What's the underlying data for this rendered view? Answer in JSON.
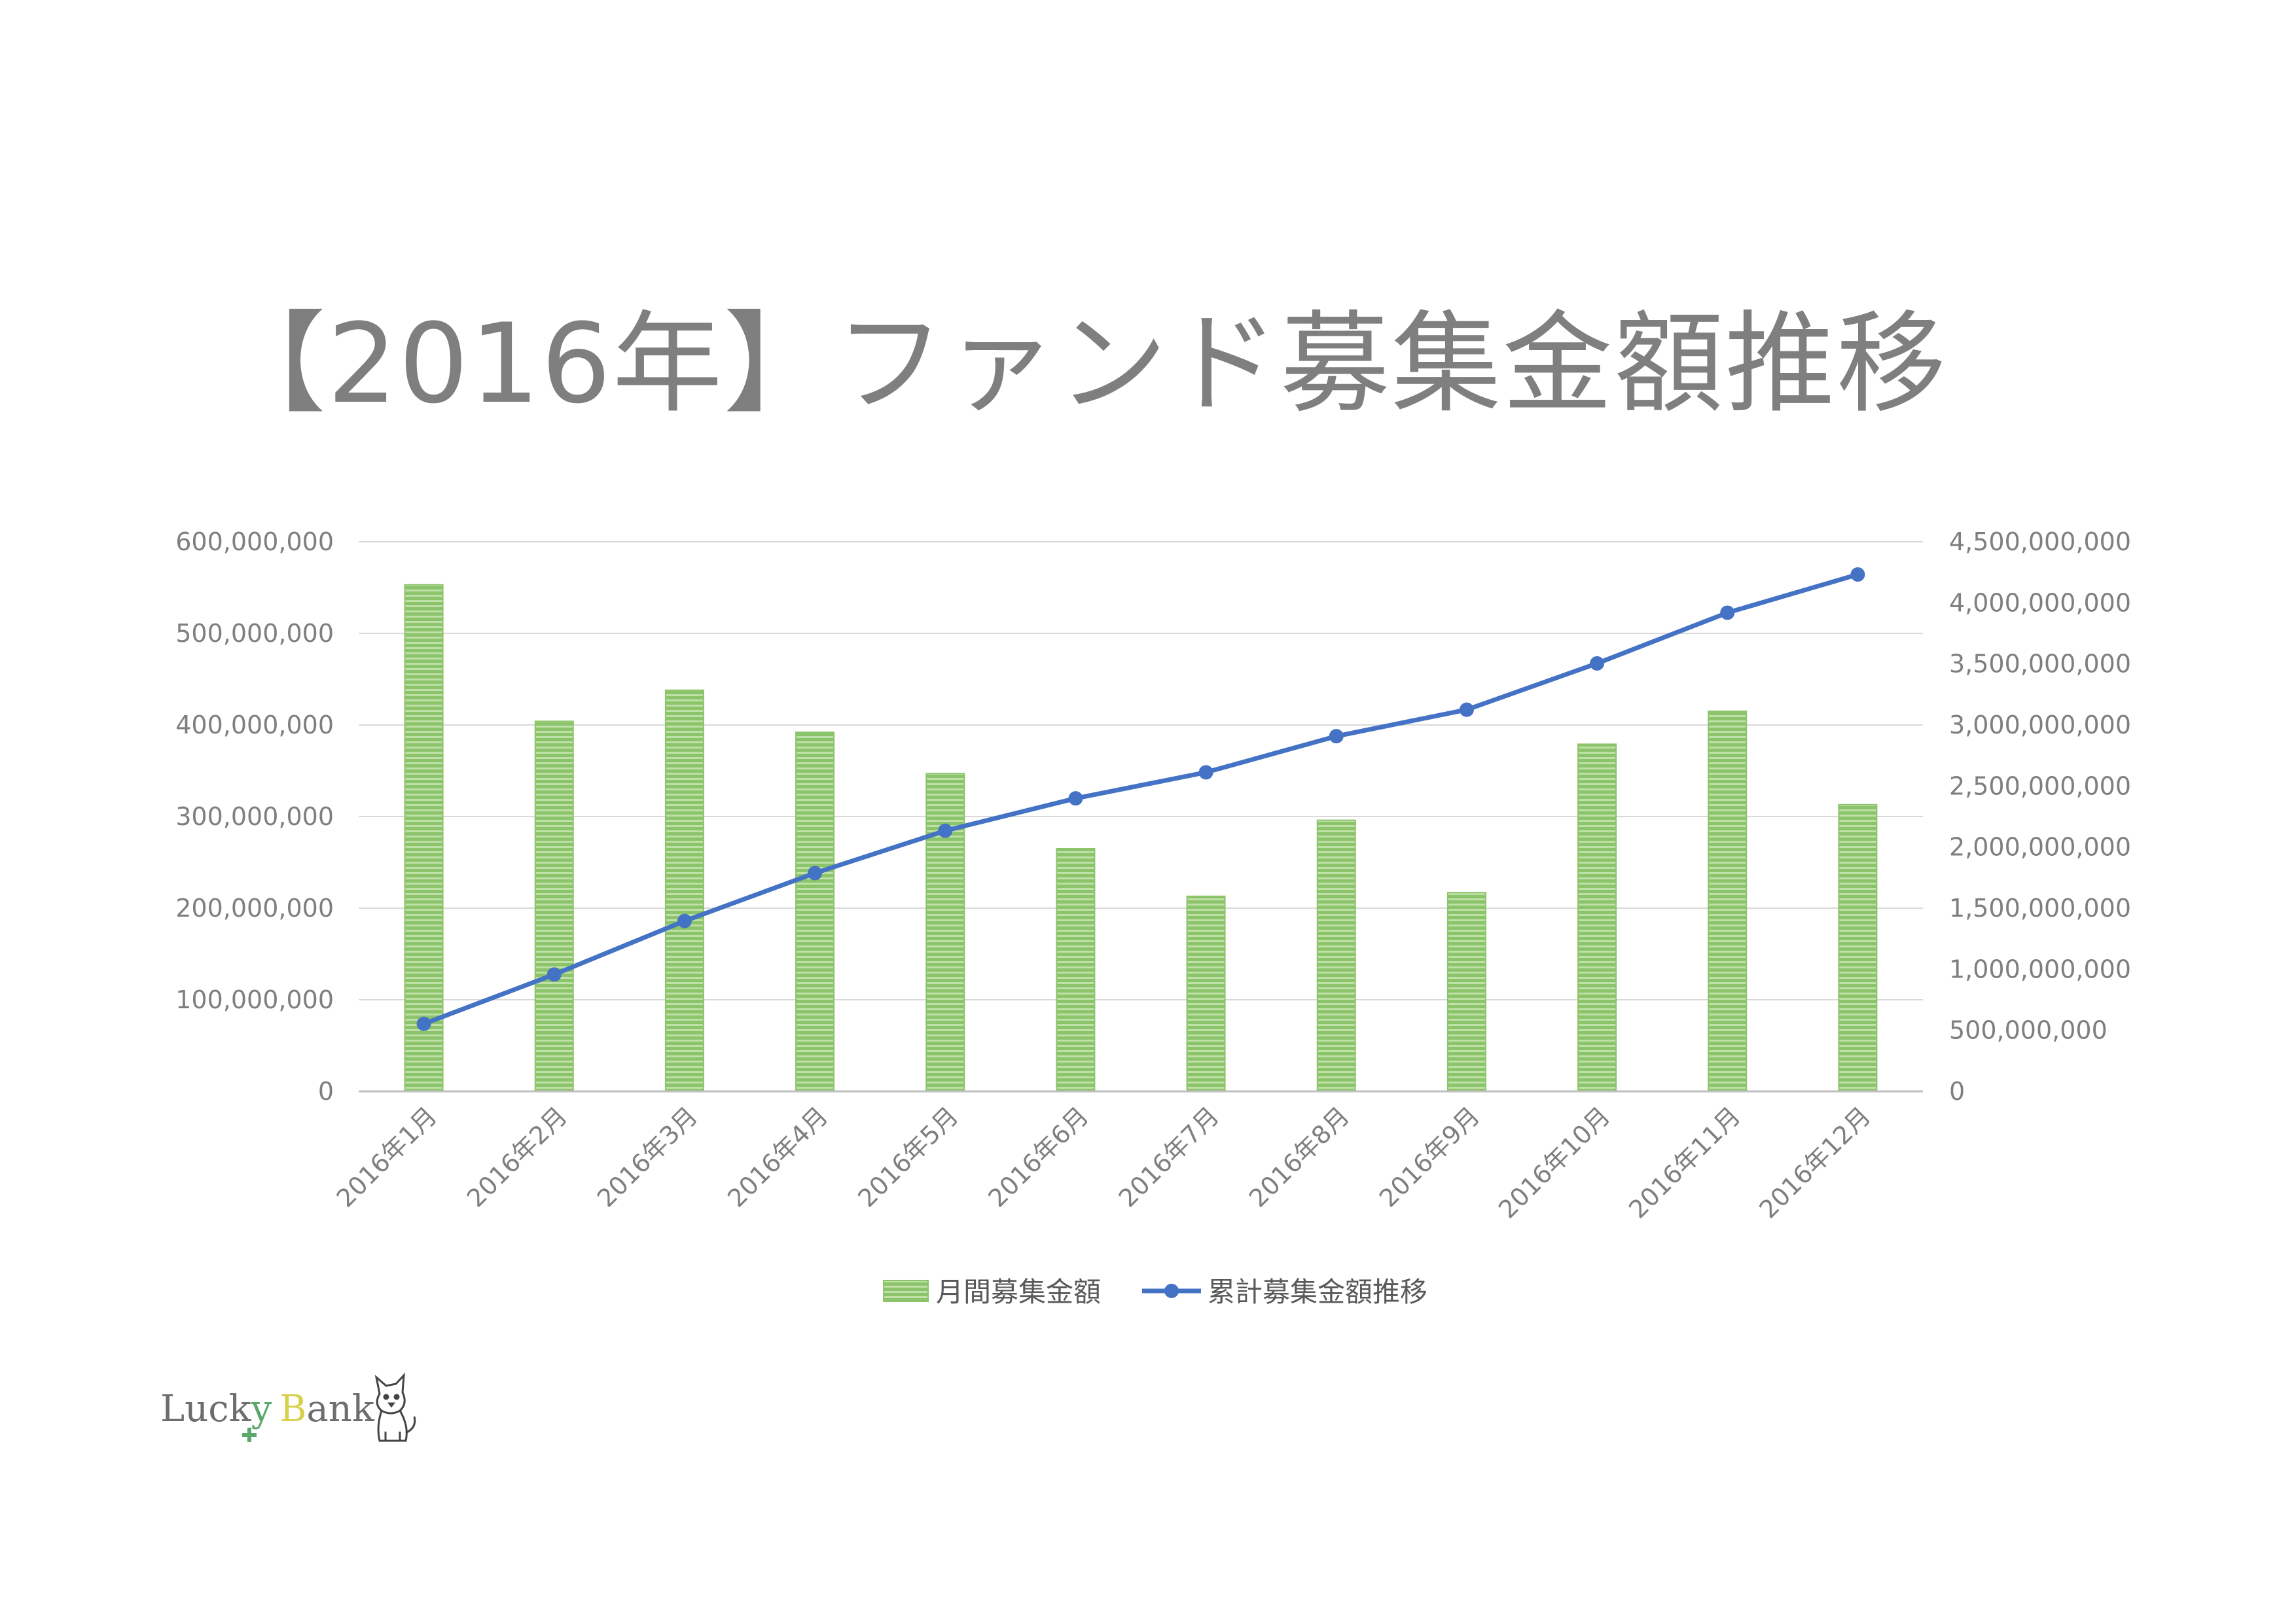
{
  "title": "【2016年】ファンド募集金額推移",
  "colors": {
    "bar": "#8cc46b",
    "bar_stripe": "#bfe0a6",
    "line": "#4472c4",
    "grid": "#d9d9d9",
    "axis_text": "#7f7f7f",
    "title": "#7f7f7f"
  },
  "logo": {
    "part1": "Luck",
    "part2": "y",
    "part3": "B",
    "part4": "ank",
    "mascot": "dog-icon"
  },
  "chart_data": {
    "type": "bar",
    "title": "",
    "categories": [
      "2016年1月",
      "2016年2月",
      "2016年3月",
      "2016年4月",
      "2016年5月",
      "2016年6月",
      "2016年7月",
      "2016年8月",
      "2016年9月",
      "2016年10月",
      "2016年11月",
      "2016年12月"
    ],
    "series": [
      {
        "name": "月間募集金額",
        "type": "bar",
        "axis": "left",
        "values": [
          553000000,
          404000000,
          438000000,
          392000000,
          347000000,
          265000000,
          213000000,
          296000000,
          217000000,
          379000000,
          415000000,
          313000000
        ]
      },
      {
        "name": "累計募集金額推移",
        "type": "line",
        "axis": "right",
        "values": [
          553000000,
          957000000,
          1395000000,
          1787000000,
          2134000000,
          2399000000,
          2612000000,
          2908000000,
          3125000000,
          3504000000,
          3919000000,
          4232000000
        ]
      }
    ],
    "ylim": [
      0,
      600000000
    ],
    "y2lim": [
      0,
      4500000000
    ],
    "yticks": [
      "0",
      "100,000,000",
      "200,000,000",
      "300,000,000",
      "400,000,000",
      "500,000,000",
      "600,000,000"
    ],
    "y2ticks": [
      "0",
      "500,000,000",
      "1,000,000,000",
      "1,500,000,000",
      "2,000,000,000",
      "2,500,000,000",
      "3,000,000,000",
      "3,500,000,000",
      "4,000,000,000",
      "4,500,000,000"
    ],
    "grid": true,
    "legend": "bottom"
  }
}
